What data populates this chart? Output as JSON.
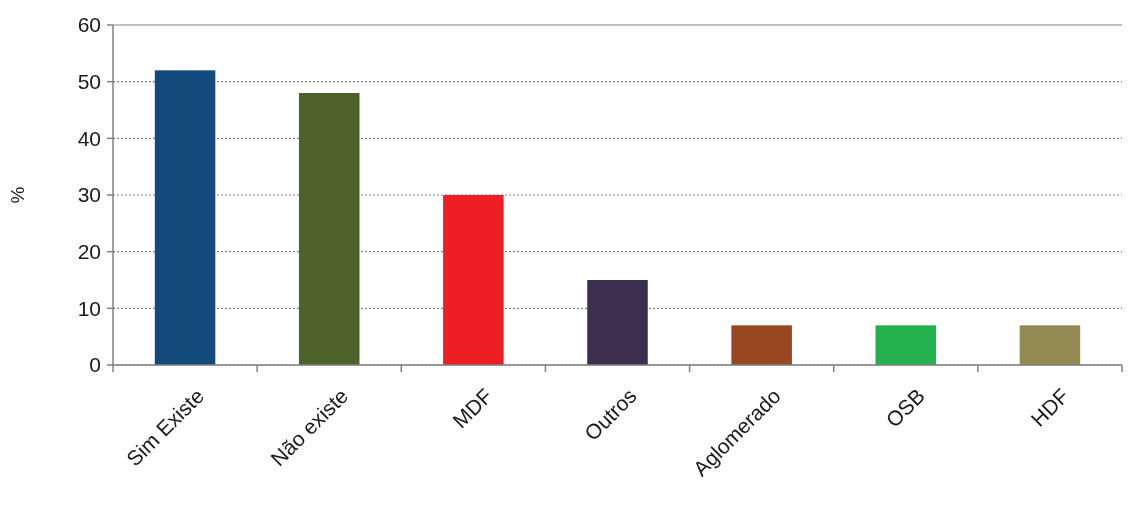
{
  "chart_data": {
    "type": "bar",
    "ylabel": "%",
    "categories": [
      "Sim Existe",
      "Não existe",
      "MDF",
      "Outros",
      "Aglomerado",
      "OSB",
      "HDF"
    ],
    "values": [
      52,
      48,
      30,
      15,
      7,
      7,
      7
    ],
    "colors": [
      "#134a7c",
      "#4d622b",
      "#ed1f24",
      "#3c2f4f",
      "#984820",
      "#22b14c",
      "#948a54"
    ],
    "ylim": [
      0,
      60
    ],
    "yticks": [
      0,
      10,
      20,
      30,
      40,
      50,
      60
    ],
    "grid": "y"
  }
}
